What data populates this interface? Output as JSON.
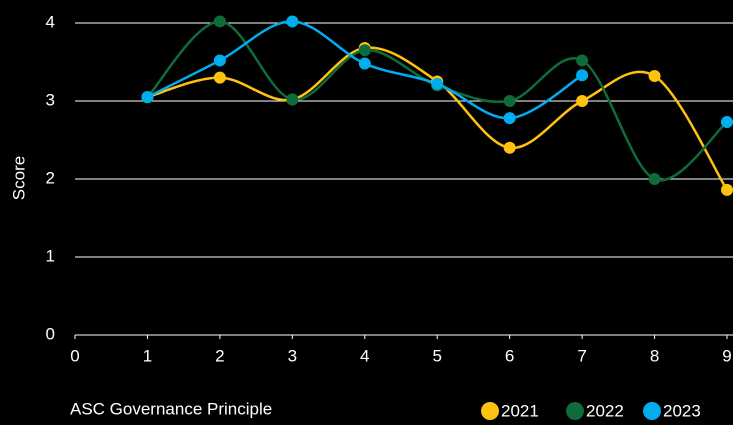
{
  "chart_data": {
    "type": "line",
    "xlabel": "ASC Governance Principle",
    "ylabel": "Score",
    "x": [
      1,
      2,
      3,
      4,
      5,
      6,
      7,
      8,
      9
    ],
    "series": [
      {
        "name": "2021",
        "color": "#ffc20e",
        "values": [
          3.05,
          3.3,
          3.02,
          3.68,
          3.25,
          2.4,
          3.0,
          3.32,
          1.86
        ]
      },
      {
        "name": "2022",
        "color": "#0e6b3a",
        "values": [
          3.05,
          4.02,
          3.02,
          3.65,
          3.2,
          3.0,
          3.52,
          2.0,
          2.73
        ]
      },
      {
        "name": "2023",
        "color": "#00aeef",
        "values": [
          3.05,
          3.52,
          4.02,
          3.48,
          3.22,
          2.78,
          3.33,
          null,
          2.73
        ]
      }
    ],
    "xlim": [
      0,
      9
    ],
    "xticks": [
      0,
      1,
      2,
      3,
      4,
      5,
      6,
      7,
      8,
      9
    ],
    "ylim": [
      0,
      4
    ],
    "yticks": [
      0,
      1,
      2,
      3,
      4
    ],
    "grid": true,
    "smooth": true,
    "legend": "bottom right"
  }
}
